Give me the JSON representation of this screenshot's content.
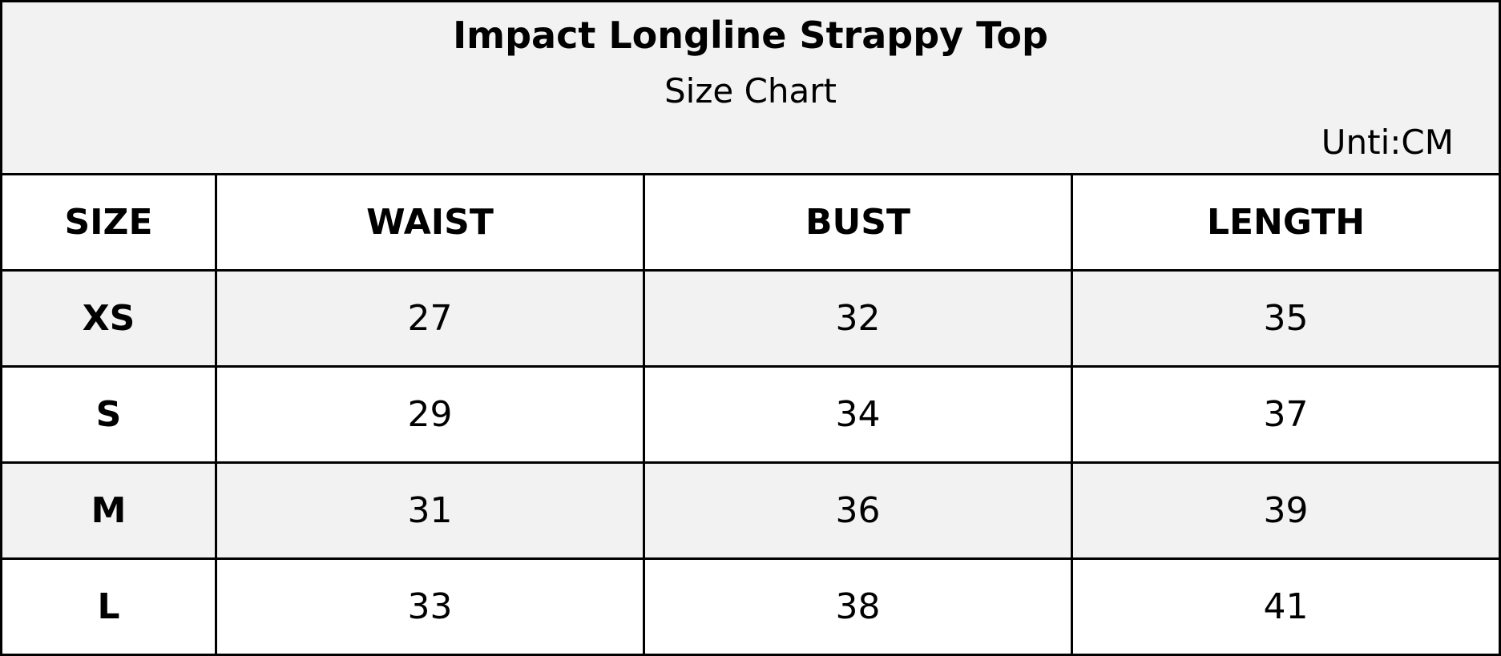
{
  "header": {
    "title": "Impact Longline Strappy Top",
    "subtitle": "Size Chart",
    "unit": "Unti:CM"
  },
  "table": {
    "columns": [
      "SIZE",
      "WAIST",
      "BUST",
      "LENGTH"
    ],
    "rows": [
      [
        "XS",
        27,
        32,
        35
      ],
      [
        "S",
        29,
        34,
        37
      ],
      [
        "M",
        31,
        36,
        39
      ],
      [
        "L",
        33,
        38,
        41
      ]
    ]
  }
}
